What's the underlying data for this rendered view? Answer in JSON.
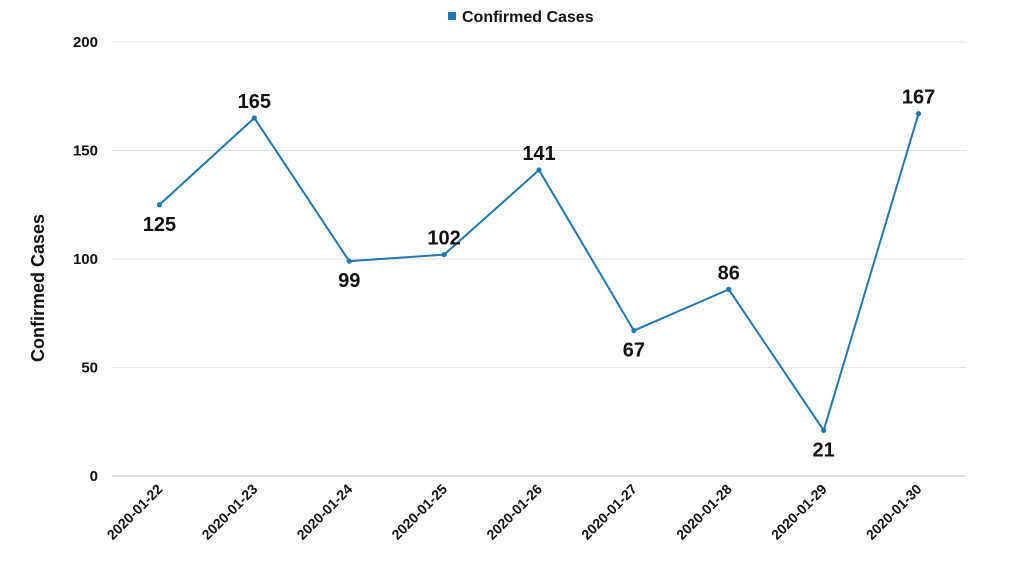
{
  "chart_data": {
    "type": "line",
    "title": "",
    "xlabel": "",
    "ylabel": "Confirmed Cases",
    "ylim": [
      0,
      200
    ],
    "yticks": [
      0,
      50,
      100,
      150,
      200
    ],
    "categories": [
      "2020-01-22",
      "2020-01-23",
      "2020-01-24",
      "2020-01-25",
      "2020-01-26",
      "2020-01-27",
      "2020-01-28",
      "2020-01-29",
      "2020-01-30"
    ],
    "series": [
      {
        "name": "Confirmed Cases",
        "color": "#1f77b4",
        "values": [
          125,
          165,
          99,
          102,
          141,
          67,
          86,
          21,
          167
        ],
        "label_positions": [
          "below",
          "above",
          "below",
          "above",
          "above",
          "below",
          "above",
          "below",
          "above"
        ]
      }
    ],
    "legend": "top-center",
    "grid": true
  }
}
